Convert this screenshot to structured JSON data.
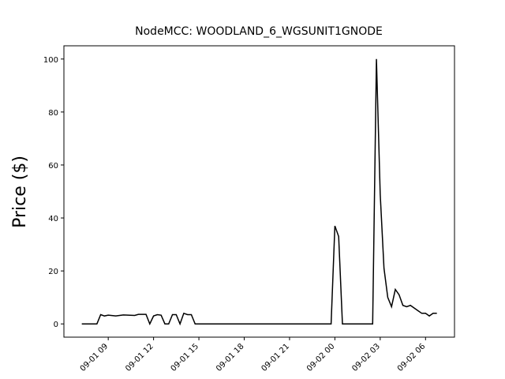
{
  "chart_data": {
    "type": "line",
    "title": "NodeMCC: WOODLAND_6_WGSUNIT1GNODE",
    "y_label": "Price ($)",
    "x": [
      "09-01 07:15",
      "09-01 08:15",
      "09-01 08:30",
      "09-01 08:45",
      "09-01 09:00",
      "09-01 09:30",
      "09-01 10:00",
      "09-01 10:45",
      "09-01 11:00",
      "09-01 11:30",
      "09-01 11:45",
      "09-01 12:00",
      "09-01 12:15",
      "09-01 12:30",
      "09-01 12:45",
      "09-01 13:00",
      "09-01 13:15",
      "09-01 13:30",
      "09-01 13:45",
      "09-01 14:00",
      "09-01 14:15",
      "09-01 14:30",
      "09-01 14:45",
      "09-01 23:45",
      "09-02 00:00",
      "09-02 00:15",
      "09-02 00:30",
      "09-02 02:30",
      "09-02 02:45",
      "09-02 03:00",
      "09-02 03:15",
      "09-02 03:30",
      "09-02 03:45",
      "09-02 04:00",
      "09-02 04:15",
      "09-02 04:30",
      "09-02 04:45",
      "09-02 05:00",
      "09-02 05:15",
      "09-02 05:30",
      "09-02 05:45",
      "09-02 06:00",
      "09-02 06:15",
      "09-02 06:30",
      "09-02 06:45"
    ],
    "series": [
      {
        "name": "Price",
        "color": "#000000",
        "values": [
          0,
          0,
          3.5,
          3,
          3.3,
          3,
          3.4,
          3.2,
          3.6,
          3.6,
          0,
          3,
          3.5,
          3.3,
          0,
          0,
          3.5,
          3.5,
          0,
          4,
          3.5,
          3.5,
          0,
          0,
          37,
          33,
          0,
          0,
          100,
          49,
          21,
          10,
          6.5,
          13,
          11,
          7,
          6.5,
          7,
          6,
          5,
          4,
          4,
          3,
          4,
          4
        ]
      }
    ],
    "xlim": [
      "09-01 06:04",
      "09-02 07:55"
    ],
    "xticks": [
      {
        "value": "09-01 09:00",
        "label": "09-01 09"
      },
      {
        "value": "09-01 12:00",
        "label": "09-01 12"
      },
      {
        "value": "09-01 15:00",
        "label": "09-01 15"
      },
      {
        "value": "09-01 18:00",
        "label": "09-01 18"
      },
      {
        "value": "09-01 21:00",
        "label": "09-01 21"
      },
      {
        "value": "09-02 00:00",
        "label": "09-02 00"
      },
      {
        "value": "09-02 03:00",
        "label": "09-02 03"
      },
      {
        "value": "09-02 06:00",
        "label": "09-02 06"
      }
    ],
    "ylim": [
      -5,
      105
    ],
    "yticks": [
      0,
      20,
      40,
      60,
      80,
      100
    ],
    "grid": false
  }
}
